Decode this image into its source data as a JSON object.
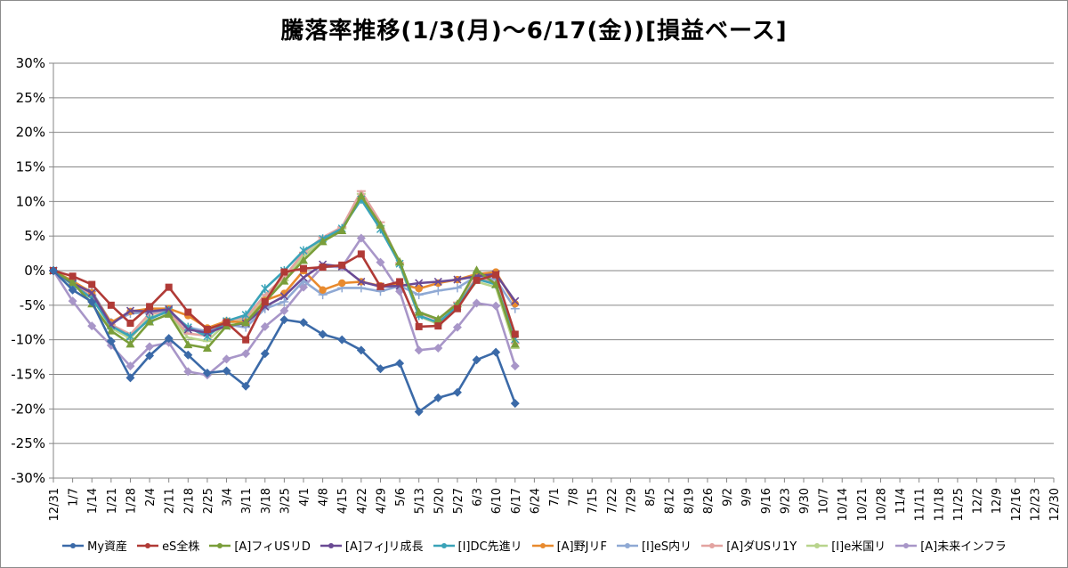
{
  "chart_data": {
    "type": "line",
    "title": "騰落率推移(1/3(月)～6/17(金))[損益ベース]",
    "xlabel": "",
    "ylabel": "",
    "ylim": [
      -30,
      30
    ],
    "y_tick_labels": [
      "30%",
      "25%",
      "20%",
      "15%",
      "10%",
      "5%",
      "0%",
      "-5%",
      "-10%",
      "-15%",
      "-20%",
      "-25%",
      "-30%"
    ],
    "grid": "horizontal",
    "legend_position": "bottom",
    "categories": [
      "12/31",
      "1/7",
      "1/14",
      "1/21",
      "1/28",
      "2/4",
      "2/11",
      "2/18",
      "2/25",
      "3/4",
      "3/11",
      "3/18",
      "3/25",
      "4/1",
      "4/8",
      "4/15",
      "4/22",
      "4/29",
      "5/6",
      "5/13",
      "5/20",
      "5/27",
      "6/3",
      "6/10",
      "6/17",
      "6/24",
      "7/1",
      "7/8",
      "7/15",
      "7/22",
      "7/29",
      "8/5",
      "8/12",
      "8/19",
      "8/26",
      "9/2",
      "9/9",
      "9/16",
      "9/23",
      "9/30",
      "10/7",
      "10/14",
      "10/21",
      "10/28",
      "11/4",
      "11/11",
      "11/18",
      "11/25",
      "12/2",
      "12/9",
      "12/16",
      "12/23",
      "12/30"
    ],
    "series": [
      {
        "name": "My資産",
        "color": "#3b6aa8",
        "marker": "diamond",
        "points": [
          [
            0,
            0
          ],
          [
            1,
            -2.8
          ],
          [
            2,
            -4.5
          ],
          [
            3,
            -10.2
          ],
          [
            4,
            -15.5
          ],
          [
            5,
            -12.3
          ],
          [
            6,
            -9.8
          ],
          [
            7,
            -12.2
          ],
          [
            8,
            -14.8
          ],
          [
            9,
            -14.5
          ],
          [
            10,
            -16.7
          ],
          [
            11,
            -12
          ],
          [
            12,
            -7.1
          ],
          [
            13,
            -7.5
          ],
          [
            14,
            -9.2
          ],
          [
            15,
            -10
          ],
          [
            16,
            -11.5
          ],
          [
            17,
            -14.2
          ],
          [
            18,
            -13.4
          ],
          [
            19,
            -20.4
          ],
          [
            20,
            -18.4
          ],
          [
            21,
            -17.6
          ],
          [
            22,
            -12.9
          ],
          [
            23,
            -11.8
          ],
          [
            24,
            -19.2
          ]
        ]
      },
      {
        "name": "eS全株",
        "color": "#b03a36",
        "marker": "square",
        "points": [
          [
            0,
            0
          ],
          [
            1,
            -0.8
          ],
          [
            2,
            -2
          ],
          [
            3,
            -5
          ],
          [
            4,
            -7.6
          ],
          [
            5,
            -5.2
          ],
          [
            6,
            -2.4
          ],
          [
            7,
            -6
          ],
          [
            8,
            -8.5
          ],
          [
            9,
            -7.5
          ],
          [
            10,
            -10
          ],
          [
            11,
            -4.5
          ],
          [
            12,
            -0.2
          ],
          [
            13,
            0.3
          ],
          [
            14,
            0.5
          ],
          [
            15,
            0.8
          ],
          [
            16,
            2.4
          ],
          [
            17,
            -2.3
          ],
          [
            18,
            -1.6
          ],
          [
            19,
            -8.1
          ],
          [
            20,
            -8
          ],
          [
            21,
            -5.5
          ],
          [
            22,
            -1.4
          ],
          [
            23,
            -0.6
          ],
          [
            24,
            -9.2
          ]
        ]
      },
      {
        "name": "[A]フィUSリD",
        "color": "#7a9e3a",
        "marker": "triangle",
        "points": [
          [
            0,
            0
          ],
          [
            1,
            -1.7
          ],
          [
            2,
            -4.8
          ],
          [
            3,
            -8.7
          ],
          [
            4,
            -10.6
          ],
          [
            5,
            -7.4
          ],
          [
            6,
            -6.3
          ],
          [
            7,
            -10.7
          ],
          [
            8,
            -11.2
          ],
          [
            9,
            -8
          ],
          [
            10,
            -7.5
          ],
          [
            11,
            -4.5
          ],
          [
            12,
            -1.5
          ],
          [
            13,
            1.5
          ],
          [
            14,
            4.2
          ],
          [
            15,
            5.8
          ],
          [
            16,
            10.8
          ],
          [
            17,
            6.6
          ],
          [
            18,
            1.3
          ],
          [
            19,
            -6
          ],
          [
            20,
            -7
          ],
          [
            21,
            -4.8
          ],
          [
            22,
            0.1
          ],
          [
            23,
            -2
          ],
          [
            24,
            -10.6
          ]
        ]
      },
      {
        "name": "[A]フィJリ成長",
        "color": "#6a4a94",
        "marker": "x",
        "points": [
          [
            0,
            0
          ],
          [
            1,
            -1.8
          ],
          [
            2,
            -3.2
          ],
          [
            3,
            -7.8
          ],
          [
            4,
            -5.8
          ],
          [
            5,
            -5.9
          ],
          [
            6,
            -5.6
          ],
          [
            7,
            -8.5
          ],
          [
            8,
            -9
          ],
          [
            9,
            -8
          ],
          [
            10,
            -7.6
          ],
          [
            11,
            -5.2
          ],
          [
            12,
            -3.7
          ],
          [
            13,
            -1
          ],
          [
            14,
            0.9
          ],
          [
            15,
            0.6
          ],
          [
            16,
            -1.6
          ],
          [
            17,
            -2.3
          ],
          [
            18,
            -2.2
          ],
          [
            19,
            -1.8
          ],
          [
            20,
            -1.6
          ],
          [
            21,
            -1.3
          ],
          [
            22,
            -0.8
          ],
          [
            23,
            -0.5
          ],
          [
            24,
            -4.4
          ]
        ]
      },
      {
        "name": "[I]DC先進リ",
        "color": "#3aa3b8",
        "marker": "asterisk",
        "points": [
          [
            0,
            0
          ],
          [
            1,
            -2
          ],
          [
            2,
            -4
          ],
          [
            3,
            -8
          ],
          [
            4,
            -9.5
          ],
          [
            5,
            -7
          ],
          [
            6,
            -5.8
          ],
          [
            7,
            -8.2
          ],
          [
            8,
            -9.5
          ],
          [
            9,
            -7.3
          ],
          [
            10,
            -6.4
          ],
          [
            11,
            -2.6
          ],
          [
            12,
            0
          ],
          [
            13,
            2.9
          ],
          [
            14,
            4.6
          ],
          [
            15,
            6.1
          ],
          [
            16,
            10.3
          ],
          [
            17,
            6
          ],
          [
            18,
            1
          ],
          [
            19,
            -6.5
          ],
          [
            20,
            -7.5
          ],
          [
            21,
            -5.2
          ],
          [
            22,
            -1.2
          ],
          [
            23,
            -2
          ],
          [
            24,
            -9.9
          ]
        ]
      },
      {
        "name": "[A]野JリF",
        "color": "#e88a2e",
        "marker": "circle",
        "points": [
          [
            0,
            0
          ],
          [
            1,
            -1.5
          ],
          [
            2,
            -3.2
          ],
          [
            3,
            -7.5
          ],
          [
            4,
            -5.9
          ],
          [
            5,
            -5.5
          ],
          [
            6,
            -5.5
          ],
          [
            7,
            -6.5
          ],
          [
            8,
            -8.3
          ],
          [
            9,
            -7.3
          ],
          [
            10,
            -7.5
          ],
          [
            11,
            -4.3
          ],
          [
            12,
            -3.3
          ],
          [
            13,
            0
          ],
          [
            14,
            -2.8
          ],
          [
            15,
            -1.8
          ],
          [
            16,
            -1.6
          ],
          [
            17,
            -2.2
          ],
          [
            18,
            -1.9
          ],
          [
            19,
            -2.6
          ],
          [
            20,
            -1.8
          ],
          [
            21,
            -1.3
          ],
          [
            22,
            -0.5
          ],
          [
            23,
            -0.2
          ],
          [
            24,
            -4.8
          ]
        ]
      },
      {
        "name": "[I]eS内リ",
        "color": "#8fa9d4",
        "marker": "plus",
        "points": [
          [
            0,
            0
          ],
          [
            1,
            -1.8
          ],
          [
            2,
            -3
          ],
          [
            3,
            -7.5
          ],
          [
            4,
            -6.2
          ],
          [
            5,
            -6
          ],
          [
            6,
            -5.7
          ],
          [
            7,
            -8.2
          ],
          [
            8,
            -8.8
          ],
          [
            9,
            -7.8
          ],
          [
            10,
            -8.2
          ],
          [
            11,
            -5.5
          ],
          [
            12,
            -4.5
          ],
          [
            13,
            -1.5
          ],
          [
            14,
            -3.5
          ],
          [
            15,
            -2.5
          ],
          [
            16,
            -2.5
          ],
          [
            17,
            -3
          ],
          [
            18,
            -2.2
          ],
          [
            19,
            -3.5
          ],
          [
            20,
            -2.9
          ],
          [
            21,
            -2.5
          ],
          [
            22,
            -0.8
          ],
          [
            23,
            -1.3
          ],
          [
            24,
            -5.5
          ]
        ]
      },
      {
        "name": "[A]ダUSリ1Y",
        "color": "#e3a3a0",
        "marker": "dash",
        "points": [
          [
            0,
            0
          ],
          [
            1,
            -1.9
          ],
          [
            2,
            -3.5
          ],
          [
            3,
            -7.8
          ],
          [
            4,
            -9.2
          ],
          [
            5,
            -6.2
          ],
          [
            6,
            -6
          ],
          [
            7,
            -9.1
          ],
          [
            8,
            -9.4
          ],
          [
            9,
            -7.2
          ],
          [
            10,
            -6.8
          ],
          [
            11,
            -3.5
          ],
          [
            12,
            -0.9
          ],
          [
            13,
            2.6
          ],
          [
            14,
            4.8
          ],
          [
            15,
            6.3
          ],
          [
            16,
            11.5
          ],
          [
            17,
            7
          ],
          [
            18,
            1.1
          ],
          [
            19,
            -6.1
          ],
          [
            20,
            -7.1
          ],
          [
            21,
            -4.6
          ],
          [
            22,
            -1
          ],
          [
            23,
            -1.7
          ],
          [
            24,
            -10.5
          ]
        ]
      },
      {
        "name": "[I]e米国リ",
        "color": "#b8d48c",
        "marker": "dash",
        "points": [
          [
            0,
            0
          ],
          [
            1,
            -2.1
          ],
          [
            2,
            -3.8
          ],
          [
            3,
            -8.3
          ],
          [
            4,
            -9.8
          ],
          [
            5,
            -6.7
          ],
          [
            6,
            -6.1
          ],
          [
            7,
            -9.7
          ],
          [
            8,
            -10.2
          ],
          [
            9,
            -7.6
          ],
          [
            10,
            -7.1
          ],
          [
            11,
            -3.9
          ],
          [
            12,
            -1.4
          ],
          [
            13,
            2.1
          ],
          [
            14,
            4.4
          ],
          [
            15,
            6.1
          ],
          [
            16,
            11.1
          ],
          [
            17,
            6.5
          ],
          [
            18,
            0.8
          ],
          [
            19,
            -6.6
          ],
          [
            20,
            -7.7
          ],
          [
            21,
            -5
          ],
          [
            22,
            -1.6
          ],
          [
            23,
            -2.4
          ],
          [
            24,
            -11.2
          ]
        ]
      },
      {
        "name": "[A]未来インフラ",
        "color": "#a896c8",
        "marker": "diamond",
        "points": [
          [
            0,
            0
          ],
          [
            1,
            -4.4
          ],
          [
            2,
            -8
          ],
          [
            3,
            -10.8
          ],
          [
            4,
            -13.8
          ],
          [
            5,
            -11
          ],
          [
            6,
            -10.4
          ],
          [
            7,
            -14.6
          ],
          [
            8,
            -15.1
          ],
          [
            9,
            -12.8
          ],
          [
            10,
            -12
          ],
          [
            11,
            -8.1
          ],
          [
            12,
            -5.8
          ],
          [
            13,
            -2.4
          ],
          [
            14,
            0.6
          ],
          [
            15,
            0.5
          ],
          [
            16,
            4.7
          ],
          [
            17,
            1.2
          ],
          [
            18,
            -3
          ],
          [
            19,
            -11.5
          ],
          [
            20,
            -11.2
          ],
          [
            21,
            -8.2
          ],
          [
            22,
            -4.7
          ],
          [
            23,
            -5.1
          ],
          [
            24,
            -13.8
          ]
        ]
      }
    ]
  }
}
